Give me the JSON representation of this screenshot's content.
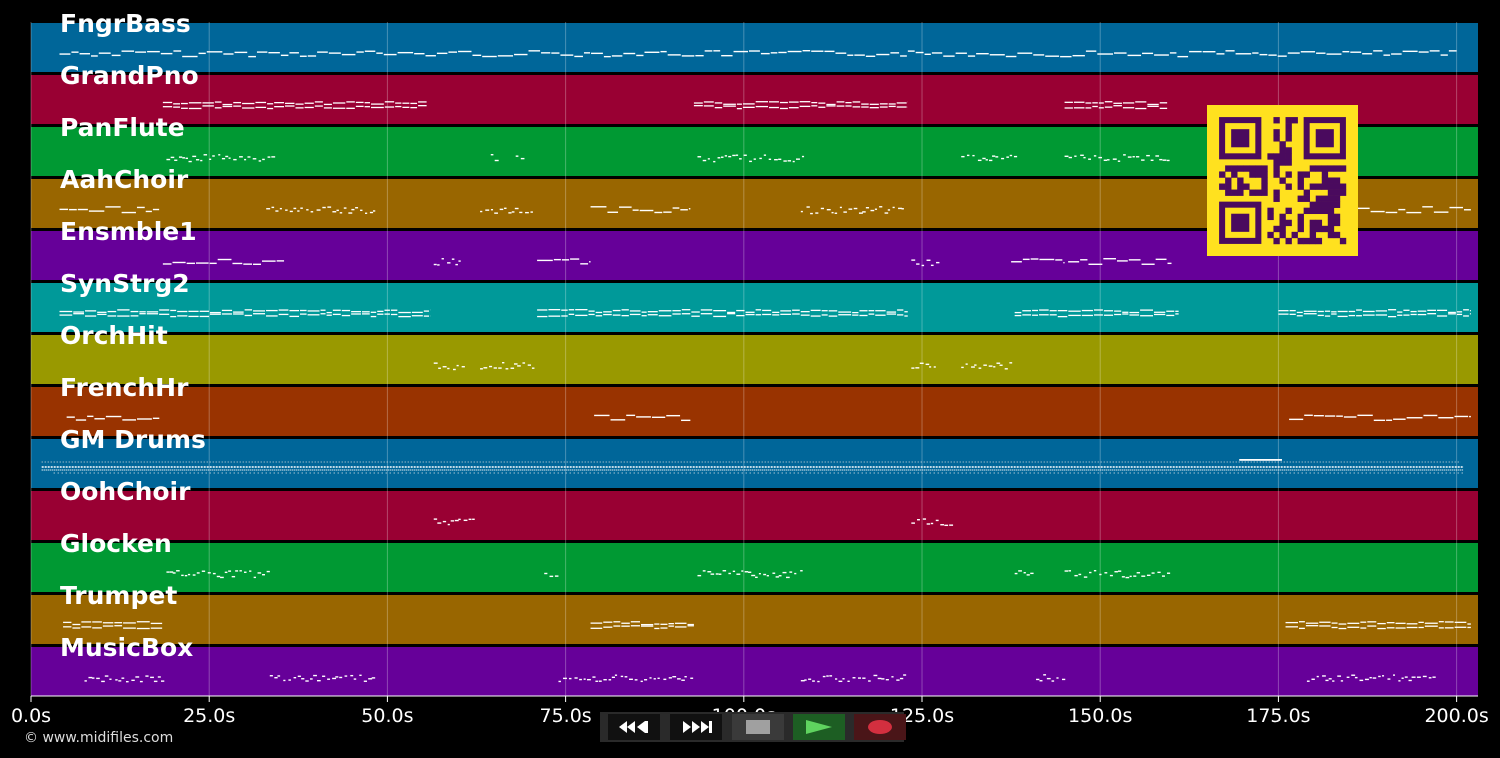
{
  "tracks": [
    {
      "name": "FngrBass",
      "color": "#006699",
      "notes": [
        [
          4,
          200,
          "line"
        ]
      ]
    },
    {
      "name": "GrandPno",
      "color": "#990033",
      "notes": [
        [
          18.5,
          55.5,
          "bars"
        ],
        [
          93,
          123,
          "bars"
        ],
        [
          145,
          159.5,
          "bars"
        ]
      ]
    },
    {
      "name": "PanFlute",
      "color": "#009933",
      "notes": [
        [
          19,
          34,
          "dots"
        ],
        [
          64.5,
          65.5,
          "dots"
        ],
        [
          68,
          69,
          "dots"
        ],
        [
          93.5,
          108.5,
          "dots"
        ],
        [
          130.5,
          138,
          "dots"
        ],
        [
          145,
          160,
          "dots"
        ]
      ]
    },
    {
      "name": "AahChoir",
      "color": "#996600",
      "notes": [
        [
          4,
          18,
          "line"
        ],
        [
          33,
          48,
          "dots"
        ],
        [
          63,
          70.5,
          "dots"
        ],
        [
          78.5,
          92.5,
          "line"
        ],
        [
          108,
          122.5,
          "dots"
        ],
        [
          186,
          202,
          "line"
        ]
      ]
    },
    {
      "name": "Ensmble1",
      "color": "#660099",
      "notes": [
        [
          18.5,
          35.5,
          "line"
        ],
        [
          56.5,
          60,
          "dots"
        ],
        [
          71,
          78.5,
          "line"
        ],
        [
          123.5,
          127,
          "dots"
        ],
        [
          137.5,
          145,
          "line"
        ],
        [
          145.5,
          160,
          "line"
        ]
      ]
    },
    {
      "name": "SynStrg2",
      "color": "#009999",
      "notes": [
        [
          4,
          56,
          "bars"
        ],
        [
          71,
          123,
          "bars"
        ],
        [
          138,
          161,
          "bars"
        ],
        [
          175,
          202,
          "bars"
        ]
      ]
    },
    {
      "name": "OrchHit",
      "color": "#999900",
      "notes": [
        [
          56.5,
          60.5,
          "dots"
        ],
        [
          63,
          70.5,
          "dots"
        ],
        [
          123.5,
          127,
          "dots"
        ],
        [
          130.5,
          138,
          "dots"
        ]
      ]
    },
    {
      "name": "FrenchHr",
      "color": "#993300",
      "notes": [
        [
          5,
          18,
          "line"
        ],
        [
          79,
          92.5,
          "line"
        ],
        [
          176.5,
          202,
          "line"
        ]
      ]
    },
    {
      "name": "GM Drums",
      "color": "#006699",
      "notes": [
        [
          1.5,
          201,
          "drums"
        ]
      ]
    },
    {
      "name": "OohChoir",
      "color": "#990033",
      "notes": [
        [
          56.5,
          62.5,
          "dots"
        ],
        [
          123.5,
          129.5,
          "dots"
        ]
      ]
    },
    {
      "name": "Glocken",
      "color": "#009933",
      "notes": [
        [
          19,
          33.5,
          "dots"
        ],
        [
          72,
          74,
          "dots"
        ],
        [
          93.5,
          108,
          "dots"
        ],
        [
          138,
          140.5,
          "dots"
        ],
        [
          145,
          160,
          "dots"
        ]
      ]
    },
    {
      "name": "Trumpet",
      "color": "#996600",
      "notes": [
        [
          4.5,
          18.5,
          "bars"
        ],
        [
          78.5,
          93,
          "bars"
        ],
        [
          176,
          202,
          "bars"
        ]
      ]
    },
    {
      "name": "MusicBox",
      "color": "#660099",
      "notes": [
        [
          7.5,
          18.5,
          "dots"
        ],
        [
          33.5,
          48,
          "dots"
        ],
        [
          74,
          93,
          "dots"
        ],
        [
          108,
          122.5,
          "dots"
        ],
        [
          141,
          145,
          "dots"
        ],
        [
          179,
          197,
          "dots"
        ]
      ]
    }
  ],
  "timeline": {
    "tick_labels": [
      "0.0s",
      "25.0s",
      "50.0s",
      "75.0s",
      "100.0s",
      "125.0s",
      "150.0s",
      "175.0s",
      "200.0s"
    ],
    "tick_values": [
      0,
      25,
      50,
      75,
      100,
      125,
      150,
      175,
      200
    ],
    "max_time": 203
  },
  "copyright": "© www.midifiles.com",
  "qr": {
    "fg": "#4a0a5e",
    "bg": "#ffe11f"
  },
  "transport": {
    "buttons": [
      {
        "name": "rewind-button",
        "icon": "rewind-icon",
        "color": "#ffffff"
      },
      {
        "name": "fast-forward-button",
        "icon": "fast-forward-icon",
        "color": "#ffffff"
      },
      {
        "name": "stop-button",
        "icon": "stop-icon",
        "color": "#a0a0a0"
      },
      {
        "name": "play-button",
        "icon": "play-icon",
        "color": "#5fd35f"
      },
      {
        "name": "record-button",
        "icon": "record-icon",
        "color": "#d32f3f"
      }
    ]
  }
}
